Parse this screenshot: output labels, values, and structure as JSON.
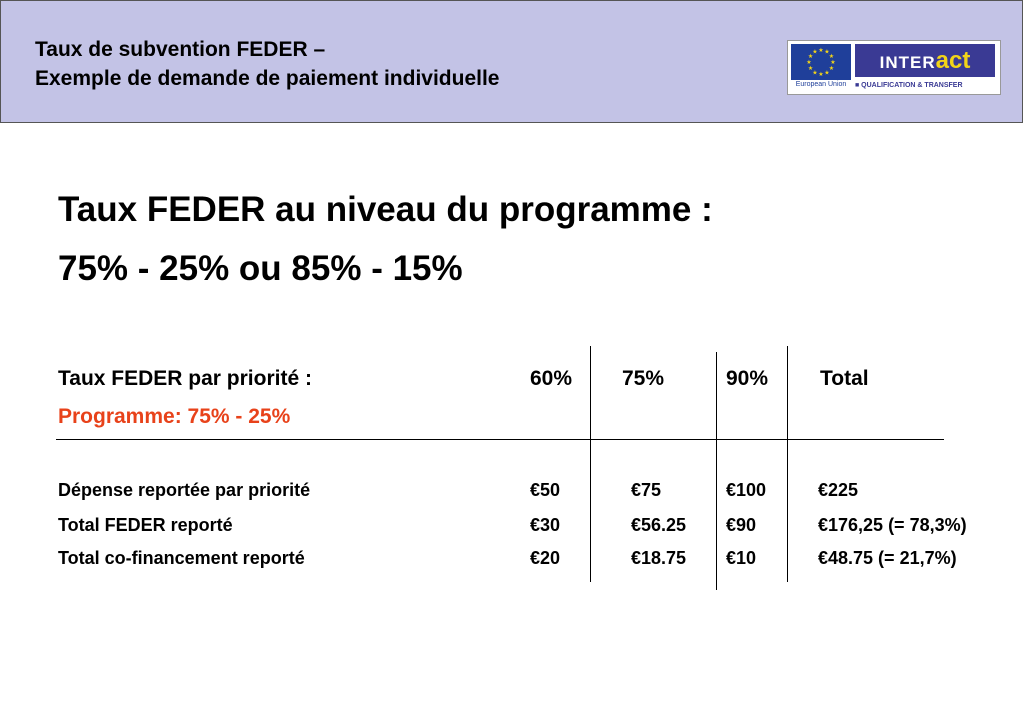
{
  "header": {
    "title_line1": "Taux de subvention FEDER –",
    "title_line2": "Exemple de demande de paiement individuelle",
    "logo": {
      "eu_caption": "European Union",
      "brand_prefix": "INTER",
      "brand_suffix": "act",
      "subtitle": "■ QUALIFICATION & TRANSFER",
      "flag_color": "#1f3f9a",
      "brand_color": "#3a3a94",
      "accent_color": "#f2d418"
    }
  },
  "main": {
    "heading_line1": "Taux FEDER au niveau du programme :",
    "heading_line2": "75% - 25% ou 85% - 15%"
  },
  "table": {
    "label_header": "Taux FEDER par priorité :",
    "label_subheader": "Programme: 75% - 25%",
    "columns": [
      "60%",
      "75%",
      "90%",
      "Total"
    ],
    "rows": [
      {
        "label": "Dépense reportée par priorité",
        "values": [
          "€50",
          "€75",
          "€100",
          "€225"
        ]
      },
      {
        "label": "Total FEDER reporté",
        "values": [
          "€30",
          "€56.25",
          "€90",
          "€176,25 (= 78,3%)"
        ]
      },
      {
        "label": "Total co-financement reporté",
        "values": [
          "€20",
          "€18.75",
          "€10",
          "€48.75 (= 21,7%)"
        ]
      }
    ],
    "accent_color": "#e8421a"
  }
}
